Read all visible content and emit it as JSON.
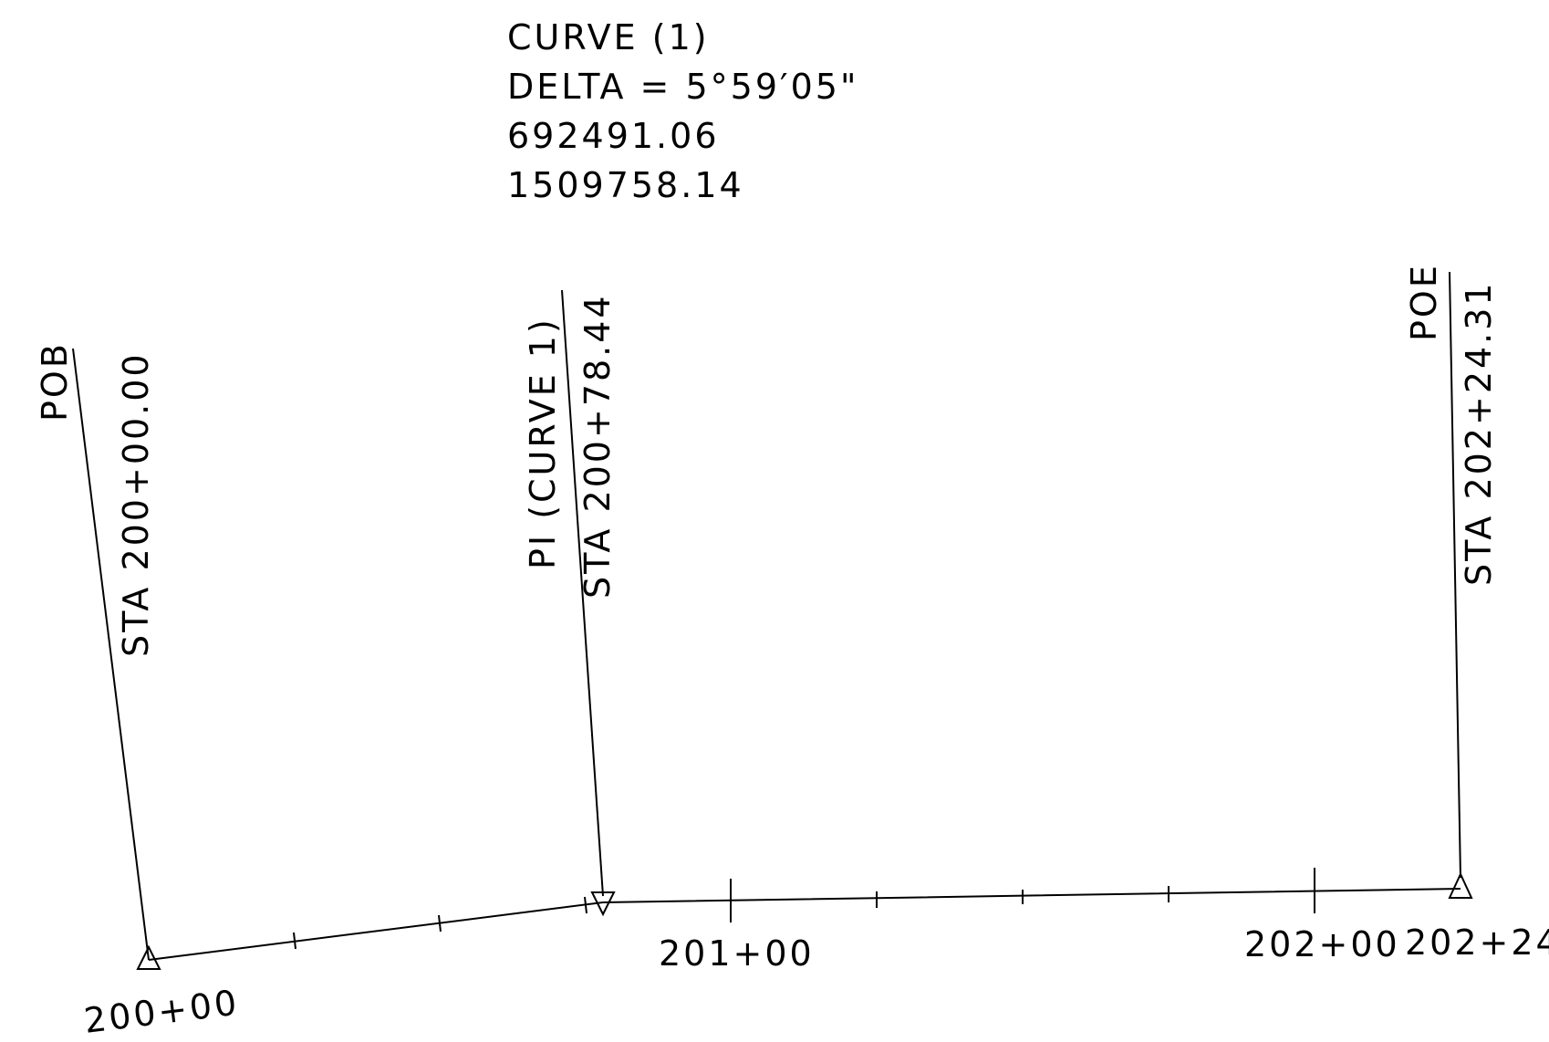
{
  "curve_info": {
    "title": "CURVE (1)",
    "delta": "DELTA =  5°59′05\"",
    "northing": "692491.06",
    "easting": "1509758.14"
  },
  "labels": {
    "pob_name": "POB",
    "pob_station": "STA 200+00.00",
    "pi_name": "PI (CURVE 1)",
    "pi_station": "STA 200+78.44",
    "poe_name": "POE",
    "poe_station": "STA 202+24.31"
  },
  "stations": {
    "s200": "200+00",
    "s201": "201+00",
    "s202": "202+00",
    "s202_24": "202+24"
  }
}
